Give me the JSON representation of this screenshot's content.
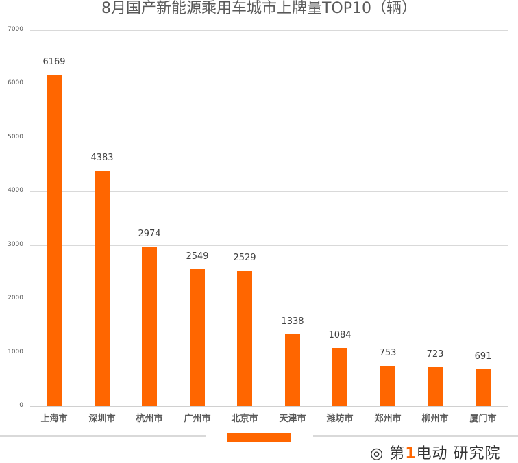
{
  "chart_data": {
    "type": "bar",
    "title": "8月国产新能源乘用车城市上牌量TOP10（辆）",
    "xlabel": "",
    "ylabel": "",
    "ylim": [
      0,
      7000
    ],
    "yticks": [
      "0",
      "1000",
      "2000",
      "3000",
      "4000",
      "5000",
      "6000",
      "7000"
    ],
    "grid": true,
    "legend": null,
    "bar_color": "#ff6600",
    "categories": [
      "上海市",
      "深圳市",
      "杭州市",
      "广州市",
      "北京市",
      "天津市",
      "潍坊市",
      "郑州市",
      "柳州市",
      "厦门市"
    ],
    "values": [
      6169,
      4383,
      2974,
      2549,
      2529,
      1338,
      1084,
      753,
      723,
      691
    ],
    "value_labels": [
      "6169",
      "4383",
      "2974",
      "2549",
      "2529",
      "1338",
      "1084",
      "753",
      "723",
      "691"
    ]
  },
  "footer": {
    "accent_color": "#ff6600",
    "logo_text_1": "第",
    "logo_text_one": "1",
    "logo_text_2": "电动",
    "logo_text_3": "研究院"
  }
}
